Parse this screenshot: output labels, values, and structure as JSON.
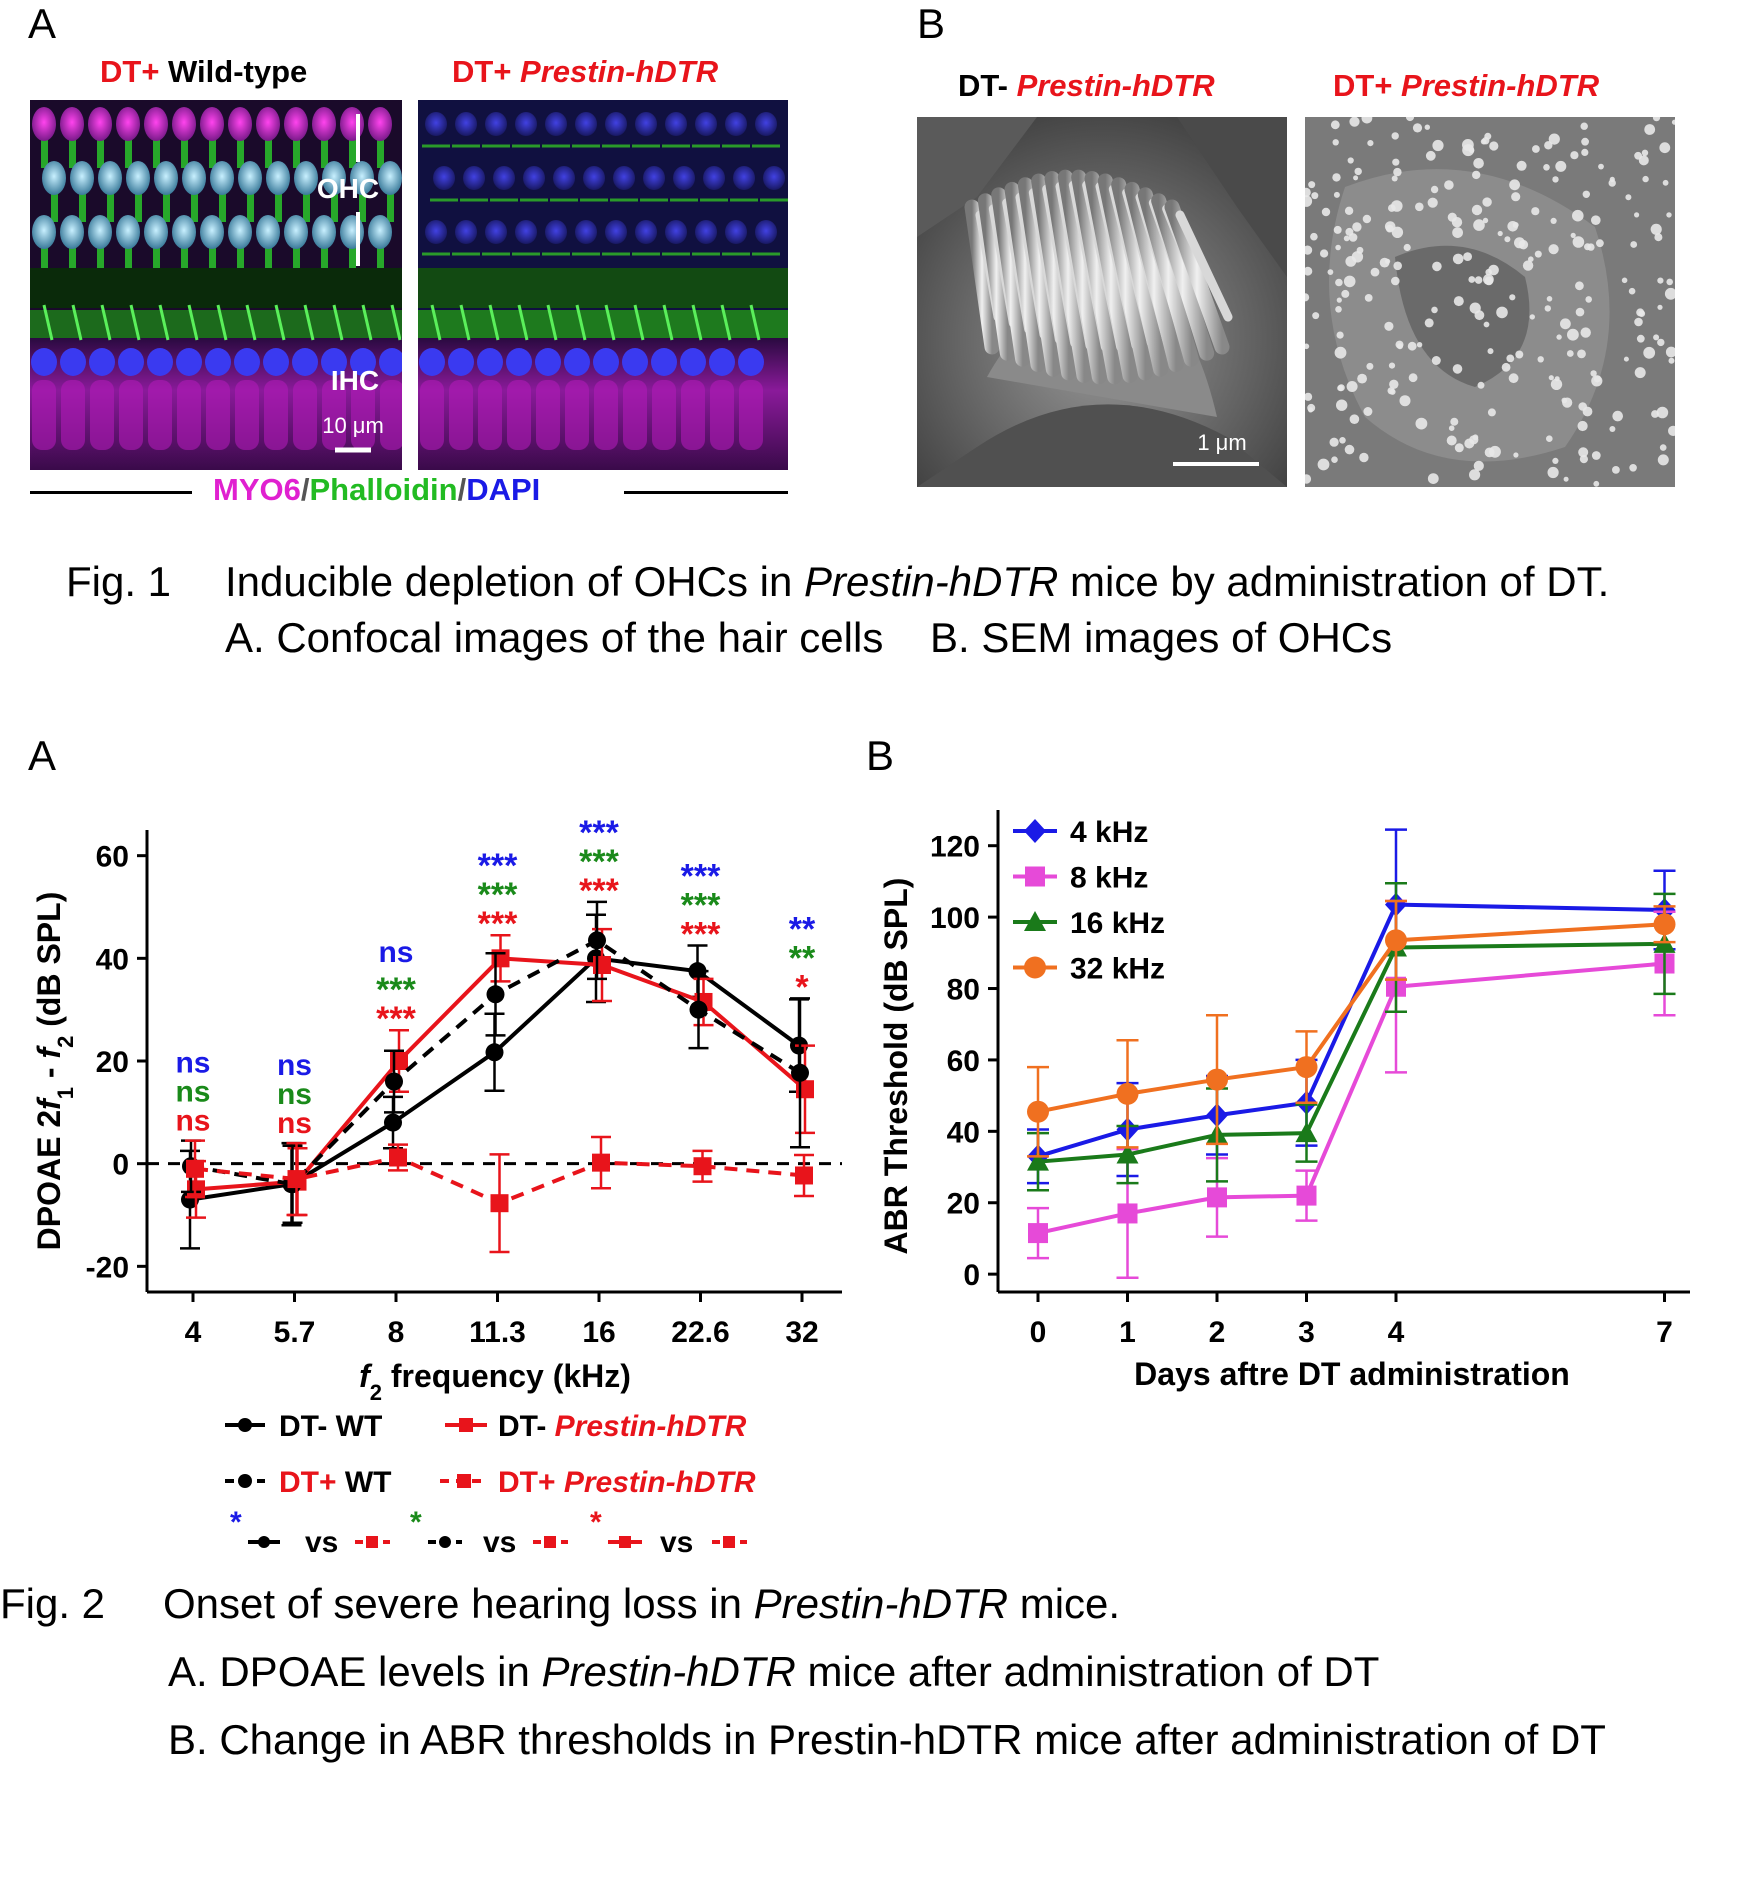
{
  "fig1": {
    "panel_a_letter": "A",
    "panel_b_letter": "B",
    "img1_title_prefix": "DT+",
    "img1_title_rest": " Wild-type",
    "img2_title_prefix": "DT+ ",
    "img2_title_rest": "Prestin-hDTR",
    "img3_title_prefix": "DT- ",
    "img3_title_rest": "Prestin-hDTR",
    "img4_title_prefix": "DT+ ",
    "img4_title_rest": "Prestin-hDTR",
    "label_ohc": "OHC",
    "label_ihc": "IHC",
    "scale_confocal": "10 μm",
    "scale_sem": "1 μm",
    "stain_myo6": "MYO6",
    "stain_sep": "/",
    "stain_phalloidin": "Phalloidin",
    "stain_dapi": "DAPI",
    "stain_colors": {
      "myo6": "#e020d0",
      "phalloidin": "#22cc22",
      "dapi": "#1a1ae6"
    },
    "caption_num": "Fig. 1",
    "caption_line1_pre": "Inducible depletion of OHCs in ",
    "caption_line1_it": "Prestin-hDTR",
    "caption_line1_post": " mice by administration of DT.",
    "caption_line2": "A. Confocal images of the hair cells    B. SEM images of OHCs"
  },
  "fig2": {
    "panel_a_letter": "A",
    "panel_b_letter": "B",
    "caption_num": "Fig. 2",
    "caption_line1_pre": "Onset of severe hearing loss in ",
    "caption_line1_it": "Prestin-hDTR",
    "caption_line1_post": " mice.",
    "caption_line2_pre": "A. DPOAE levels in ",
    "caption_line2_it": "Prestin-hDTR",
    "caption_line2_post": " mice after administration of DT",
    "caption_line3": "B. Change in ABR thresholds in Prestin-hDTR mice after administration of DT"
  },
  "chart_data": [
    {
      "type": "line",
      "categories": [
        "4",
        "5.7",
        "8",
        "11.3",
        "16",
        "22.6",
        "32"
      ],
      "xlabel": "f2 frequency (kHz)",
      "ylabel": "DPOAE 2f1 - f2 (dB SPL)",
      "ylim": [
        -25,
        65
      ],
      "yticks": [
        -20,
        0,
        20,
        40,
        60
      ],
      "reference_line": 0,
      "series": [
        {
          "name": "DT- WT",
          "color": "#000000",
          "dashed": false,
          "marker": "circle",
          "values": [
            -7,
            -4,
            8,
            21.7,
            40,
            37.5,
            23
          ],
          "err": [
            9.5,
            8,
            5,
            7.5,
            8.5,
            5,
            9
          ]
        },
        {
          "name": "DT- Prestin-hDTR",
          "color": "#e8141b",
          "dashed": false,
          "marker": "square",
          "values": [
            -5,
            -3.5,
            20,
            40,
            38.7,
            31.5,
            14.5
          ],
          "err": [
            5.5,
            6.5,
            6,
            4.5,
            7,
            4.5,
            8.5
          ]
        },
        {
          "name": "DT+ WT",
          "color": "#000000",
          "dashed": true,
          "marker": "circle",
          "values": [
            -0.5,
            -4,
            16,
            33,
            43.5,
            30,
            17.7
          ],
          "err": [
            5,
            7.5,
            6,
            8,
            7.5,
            7.5,
            14.5
          ]
        },
        {
          "name": "DT+ Prestin-hDTR",
          "color": "#e8141b",
          "dashed": true,
          "marker": "square",
          "values": [
            -1,
            -3,
            1.2,
            -7.7,
            0.2,
            -0.5,
            -2.3
          ],
          "err": [
            5.5,
            7,
            2.5,
            9.5,
            5,
            3,
            4
          ]
        }
      ],
      "significance": [
        {
          "category": "4",
          "blue": "ns",
          "green": "ns",
          "red": "ns"
        },
        {
          "category": "5.7",
          "blue": "ns",
          "green": "ns",
          "red": "ns"
        },
        {
          "category": "8",
          "blue": "ns",
          "green": "***",
          "red": "***"
        },
        {
          "category": "11.3",
          "blue": "***",
          "green": "***",
          "red": "***"
        },
        {
          "category": "16",
          "blue": "***",
          "green": "***",
          "red": "***"
        },
        {
          "category": "22.6",
          "blue": "***",
          "green": "***",
          "red": "***"
        },
        {
          "category": "32",
          "blue": "**",
          "green": "**",
          "red": "*"
        }
      ],
      "significance_colors": {
        "blue": "#1a1ae6",
        "green": "#1a8a1a",
        "red": "#e8141b"
      },
      "comparison_key": {
        "vs": "vs",
        "star": "*"
      }
    },
    {
      "type": "line",
      "x": [
        0,
        1,
        2,
        3,
        4,
        7
      ],
      "xticks": [
        "0",
        "1",
        "2",
        "3",
        "4",
        "7"
      ],
      "xlabel": "Days aftre DT administration",
      "ylabel": "ABR Threshold (dB SPL)",
      "ylim": [
        -5,
        130
      ],
      "yticks": [
        0,
        20,
        40,
        60,
        80,
        100,
        120
      ],
      "legend_position": "top-left",
      "series": [
        {
          "name": "4 kHz",
          "color": "#1a1ae6",
          "marker": "diamond",
          "values": [
            33,
            40.5,
            44.5,
            48,
            103.5,
            102
          ],
          "err": [
            7.5,
            13,
            11,
            12,
            21,
            11
          ]
        },
        {
          "name": "8 kHz",
          "color": "#e64ad8",
          "marker": "square",
          "values": [
            11.5,
            17,
            21.5,
            22,
            80.5,
            87
          ],
          "err": [
            7,
            18,
            11,
            7,
            24,
            14.5
          ]
        },
        {
          "name": "16 kHz",
          "color": "#1a7a1a",
          "marker": "triangle",
          "values": [
            31.5,
            33.5,
            39,
            39.5,
            91.5,
            92.5
          ],
          "err": [
            8,
            8,
            13,
            8,
            18,
            14
          ]
        },
        {
          "name": "32 kHz",
          "color": "#f07020",
          "marker": "circle",
          "values": [
            45.5,
            50.5,
            54.5,
            58,
            93.5,
            98
          ],
          "err": [
            12.5,
            15,
            18,
            10,
            11,
            5
          ]
        }
      ]
    }
  ]
}
